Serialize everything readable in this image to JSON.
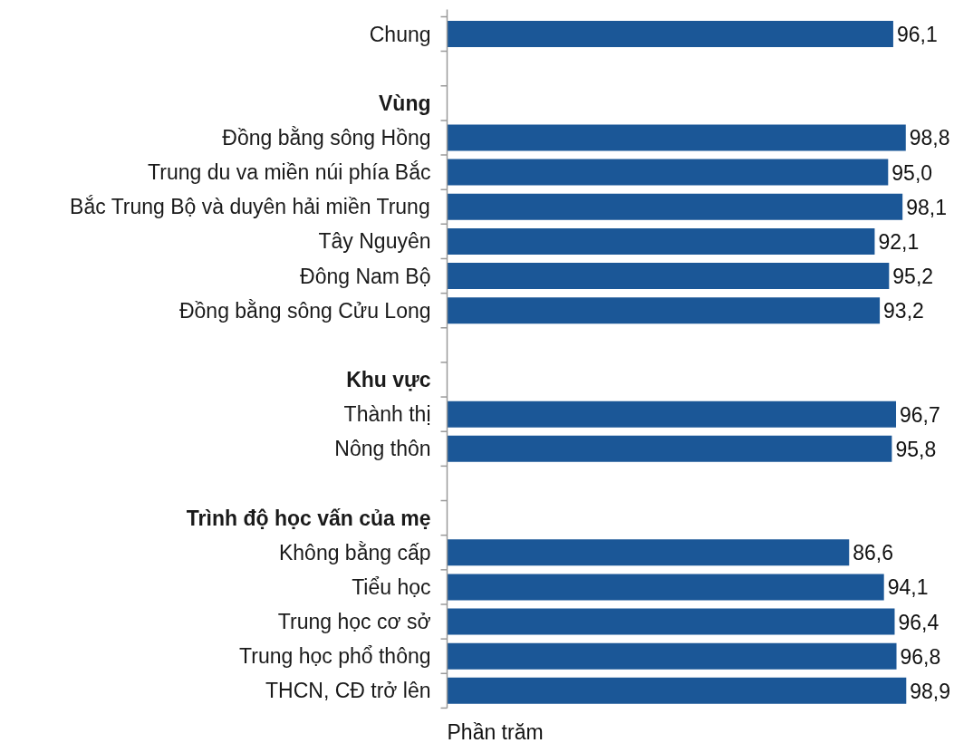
{
  "chart_data": {
    "type": "bar",
    "orientation": "horizontal",
    "xlabel": "Phần trăm",
    "color": "#1b5797",
    "categories": [
      "Chung",
      null,
      "Vùng",
      "Đồng bằng sông Hồng",
      "Trung du va miền núi phía Bắc",
      "Bắc Trung Bộ và duyên hải miền Trung",
      "Tây Nguyên",
      "Đông Nam Bộ",
      "Đồng bằng sông Cửu Long",
      null,
      "Khu vực",
      "Thành thị",
      "Nông thôn",
      null,
      "Trình độ học vấn của mẹ",
      "Không bằng cấp",
      "Tiểu học",
      "Trung học cơ sở",
      "Trung học phổ thông",
      "THCN, CĐ trở lên"
    ],
    "values": [
      96.1,
      null,
      null,
      98.8,
      95.0,
      98.1,
      92.1,
      95.2,
      93.2,
      null,
      null,
      96.7,
      95.8,
      null,
      null,
      86.6,
      94.1,
      96.4,
      96.8,
      98.9
    ],
    "value_labels": [
      "96,1",
      null,
      null,
      "98,8",
      "95,0",
      "98,1",
      "92,1",
      "95,2",
      "93,2",
      null,
      null,
      "96,7",
      "95,8",
      null,
      null,
      "86,6",
      "94,1",
      "96,4",
      "96,8",
      "98,9"
    ]
  }
}
